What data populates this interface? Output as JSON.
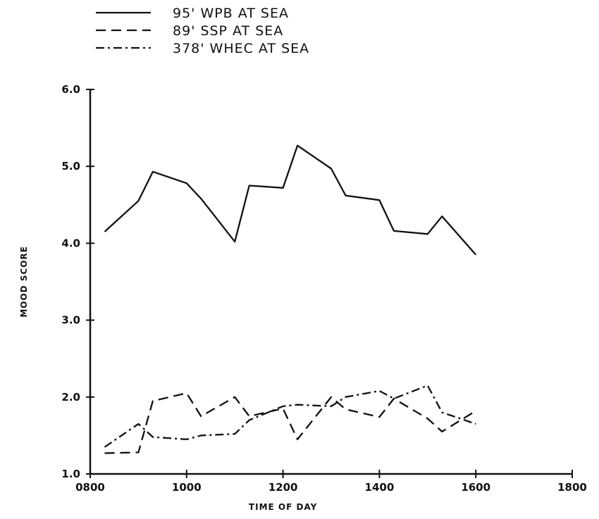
{
  "chart_data": {
    "type": "line",
    "title": "",
    "xlabel": "TIME OF DAY",
    "ylabel": "MOOD SCORE",
    "xlim": [
      800,
      1800
    ],
    "ylim": [
      1.0,
      6.0
    ],
    "x_ticks": [
      800,
      1000,
      1200,
      1400,
      1600,
      1800
    ],
    "x_tick_labels": [
      "0800",
      "1000",
      "1200",
      "1400",
      "1600",
      "1800"
    ],
    "y_ticks": [
      1.0,
      2.0,
      3.0,
      4.0,
      5.0,
      6.0
    ],
    "y_tick_labels": [
      "1.0",
      "2.0",
      "3.0",
      "4.0",
      "5.0",
      "6.0"
    ],
    "grid": false,
    "legend_position": "top-left",
    "series": [
      {
        "name": "95' WPB AT SEA",
        "style": "solid",
        "x": [
          830,
          900,
          930,
          1000,
          1030,
          1100,
          1130,
          1200,
          1230,
          1300,
          1330,
          1400,
          1430,
          1500,
          1530,
          1600
        ],
        "y": [
          4.15,
          4.55,
          4.93,
          4.78,
          4.58,
          4.02,
          4.75,
          4.72,
          5.27,
          4.97,
          4.62,
          4.56,
          4.16,
          4.12,
          4.35,
          3.85
        ]
      },
      {
        "name": "89' SSP AT SEA",
        "style": "dashed",
        "x": [
          830,
          900,
          930,
          1000,
          1030,
          1100,
          1130,
          1200,
          1230,
          1300,
          1330,
          1400,
          1430,
          1500,
          1530,
          1600
        ],
        "y": [
          1.27,
          1.28,
          1.95,
          2.05,
          1.75,
          2.0,
          1.75,
          1.85,
          1.45,
          2.0,
          1.84,
          1.74,
          1.98,
          1.72,
          1.55,
          1.82
        ]
      },
      {
        "name": "378' WHEC AT SEA",
        "style": "dash-dot",
        "x": [
          830,
          900,
          930,
          1000,
          1030,
          1100,
          1130,
          1200,
          1230,
          1300,
          1330,
          1400,
          1430,
          1500,
          1530,
          1600
        ],
        "y": [
          1.35,
          1.65,
          1.48,
          1.45,
          1.5,
          1.52,
          1.7,
          1.88,
          1.9,
          1.88,
          2.0,
          2.08,
          1.98,
          2.15,
          1.8,
          1.65
        ]
      }
    ]
  },
  "colors": {
    "ink": "#111111",
    "background": "#ffffff"
  }
}
